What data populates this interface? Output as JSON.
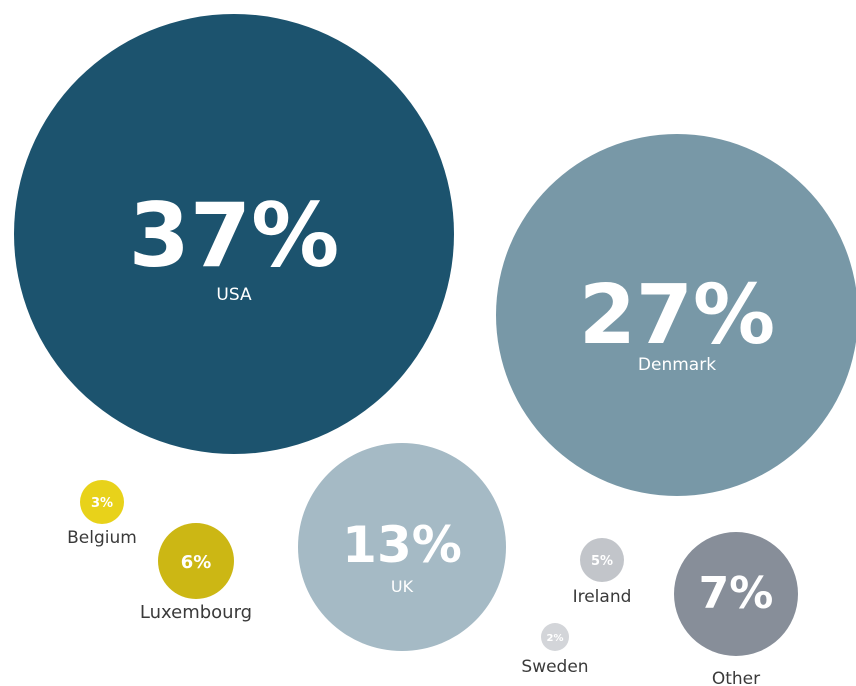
{
  "chart_data": {
    "type": "bubble",
    "unit": "%",
    "series": [
      {
        "label": "USA",
        "value": 37,
        "value_text": "37%",
        "color": "#1c536e",
        "value_color": "#ffffff",
        "label_color": "#ffffff"
      },
      {
        "label": "Denmark",
        "value": 27,
        "value_text": "27%",
        "color": "#7898a7",
        "value_color": "#ffffff",
        "label_color": "#ffffff"
      },
      {
        "label": "UK",
        "value": 13,
        "value_text": "13%",
        "color": "#a5bac5",
        "value_color": "#ffffff",
        "label_color": "#ffffff"
      },
      {
        "label": "Other",
        "value": 7,
        "value_text": "7%",
        "color": "#878e99",
        "value_color": "#ffffff",
        "label_color": "#3a3a3a"
      },
      {
        "label": "Luxembourg",
        "value": 6,
        "value_text": "6%",
        "color": "#ccb714",
        "value_color": "#ffffff",
        "label_color": "#3a3a3a"
      },
      {
        "label": "Ireland",
        "value": 5,
        "value_text": "5%",
        "color": "#c2c5ca",
        "value_color": "#ffffff",
        "label_color": "#3a3a3a"
      },
      {
        "label": "Belgium",
        "value": 3,
        "value_text": "3%",
        "color": "#e8d21a",
        "value_color": "#ffffff",
        "label_color": "#3a3a3a"
      },
      {
        "label": "Sweden",
        "value": 2,
        "value_text": "2%",
        "color": "#d3d5d9",
        "value_color": "#ffffff",
        "label_color": "#3a3a3a"
      }
    ]
  }
}
